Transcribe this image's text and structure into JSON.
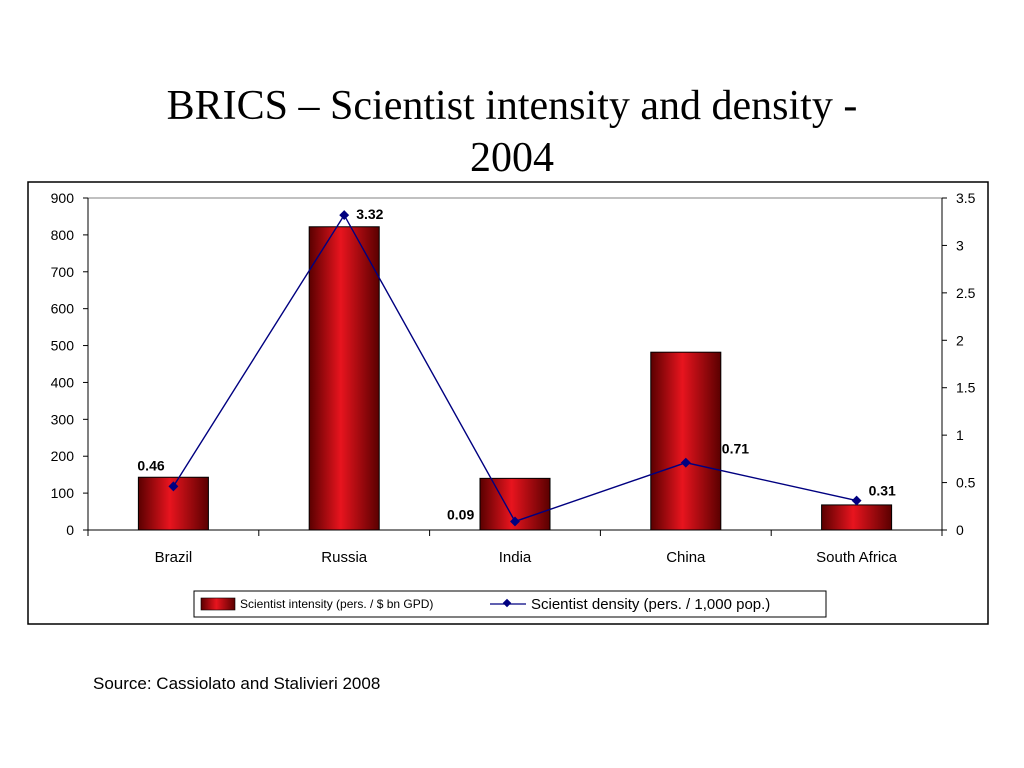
{
  "slide": {
    "title_line1": "BRICS – Scientist intensity and density -",
    "title_line2": "2004",
    "source": "Source: Cassiolato and Stalivieri 2008"
  },
  "colors": {
    "bar": "#e8141e",
    "bar_dark": "#5a0000",
    "line": "#000080",
    "frame": "#000000"
  },
  "chart_data": {
    "type": "bar",
    "title": "",
    "categories": [
      "Brazil",
      "Russia",
      "India",
      "China",
      "South Africa"
    ],
    "series": [
      {
        "name": "Scientist intensity (pers. / $ bn GPD)",
        "type": "bar",
        "axis": "left",
        "values": [
          143,
          822,
          140,
          482,
          68
        ]
      },
      {
        "name": "Scientist density (pers. / 1,000 pop.)",
        "type": "line",
        "axis": "right",
        "values": [
          0.46,
          3.32,
          0.09,
          0.71,
          0.31
        ],
        "labels": [
          "0.46",
          "3.32",
          "0.09",
          "0.71",
          "0.31"
        ]
      }
    ],
    "y_left": {
      "lim": [
        0,
        900
      ],
      "ticks": [
        "0",
        "100",
        "200",
        "300",
        "400",
        "500",
        "600",
        "700",
        "800",
        "900"
      ]
    },
    "y_right": {
      "lim": [
        0,
        3.5
      ],
      "ticks": [
        "0",
        "0.5",
        "1",
        "1.5",
        "2",
        "2.5",
        "3",
        "3.5"
      ]
    },
    "xlabel": "",
    "ylabel": "",
    "grid": false,
    "legend": "bottom"
  }
}
